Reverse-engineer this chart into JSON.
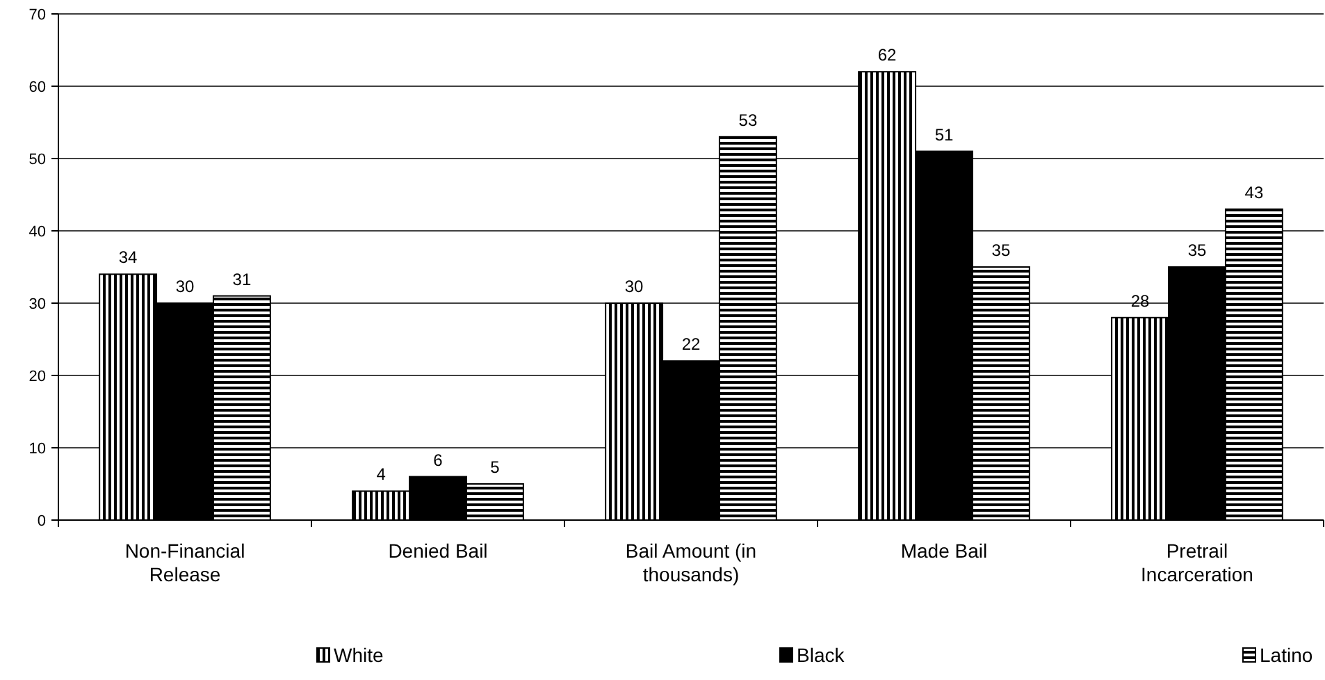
{
  "chart_data": {
    "type": "bar",
    "categories": [
      "Non-Financial Release",
      "Denied Bail",
      "Bail Amount (in thousands)",
      "Made Bail",
      "Pretrail Incarceration"
    ],
    "series": [
      {
        "name": "White",
        "color": "#000000",
        "values": [
          34,
          4,
          30,
          62,
          28
        ]
      },
      {
        "name": "Black",
        "color": "#000000",
        "values": [
          30,
          6,
          22,
          51,
          35
        ]
      },
      {
        "name": "Latino",
        "color": "#000000",
        "values": [
          31,
          5,
          53,
          35,
          43
        ]
      }
    ],
    "ylim": [
      0,
      70
    ],
    "yticks": [
      0,
      10,
      20,
      30,
      40,
      50,
      60,
      70
    ],
    "grid": "y",
    "data_labels": true,
    "legend": "bottom"
  }
}
